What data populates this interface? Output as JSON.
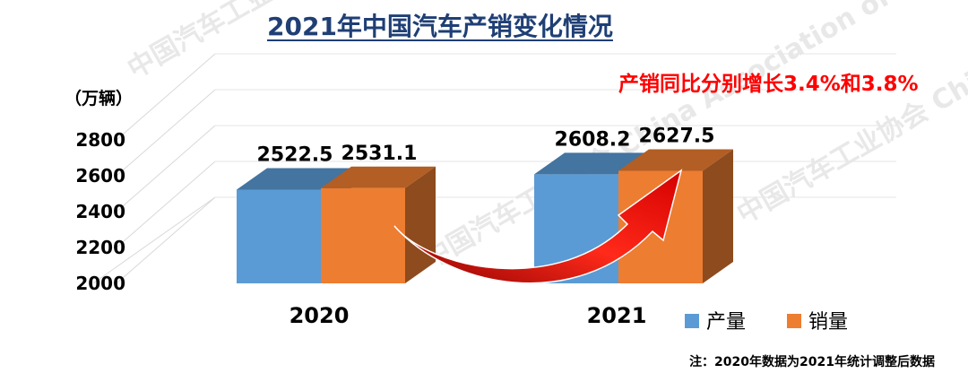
{
  "title": "2021年中国汽车产销变化情况",
  "chart_data": {
    "type": "bar",
    "unit_label": "（万辆）",
    "categories": [
      "2020",
      "2021"
    ],
    "series": [
      {
        "name": "产量",
        "values": [
          2522.5,
          2608.2
        ],
        "color": "#5b9bd5"
      },
      {
        "name": "销量",
        "values": [
          2531.1,
          2627.5
        ],
        "color": "#ed7d31"
      }
    ],
    "data_labels": [
      [
        "2522.5",
        "2531.1"
      ],
      [
        "2608.2",
        "2627.5"
      ]
    ],
    "yticks": [
      2000,
      2200,
      2400,
      2600,
      2800
    ],
    "ylim": [
      2000,
      2800
    ],
    "grid": true,
    "legend_position": "bottom-right",
    "annotation": "产销同比分别增长3.4%和3.8%",
    "annotation_color": "#ff0000",
    "footnote": "注：2020年数据为2021年统计调整后数据",
    "watermark": "中国汽车工业协会 China Association of Automobile Manufacturers"
  }
}
